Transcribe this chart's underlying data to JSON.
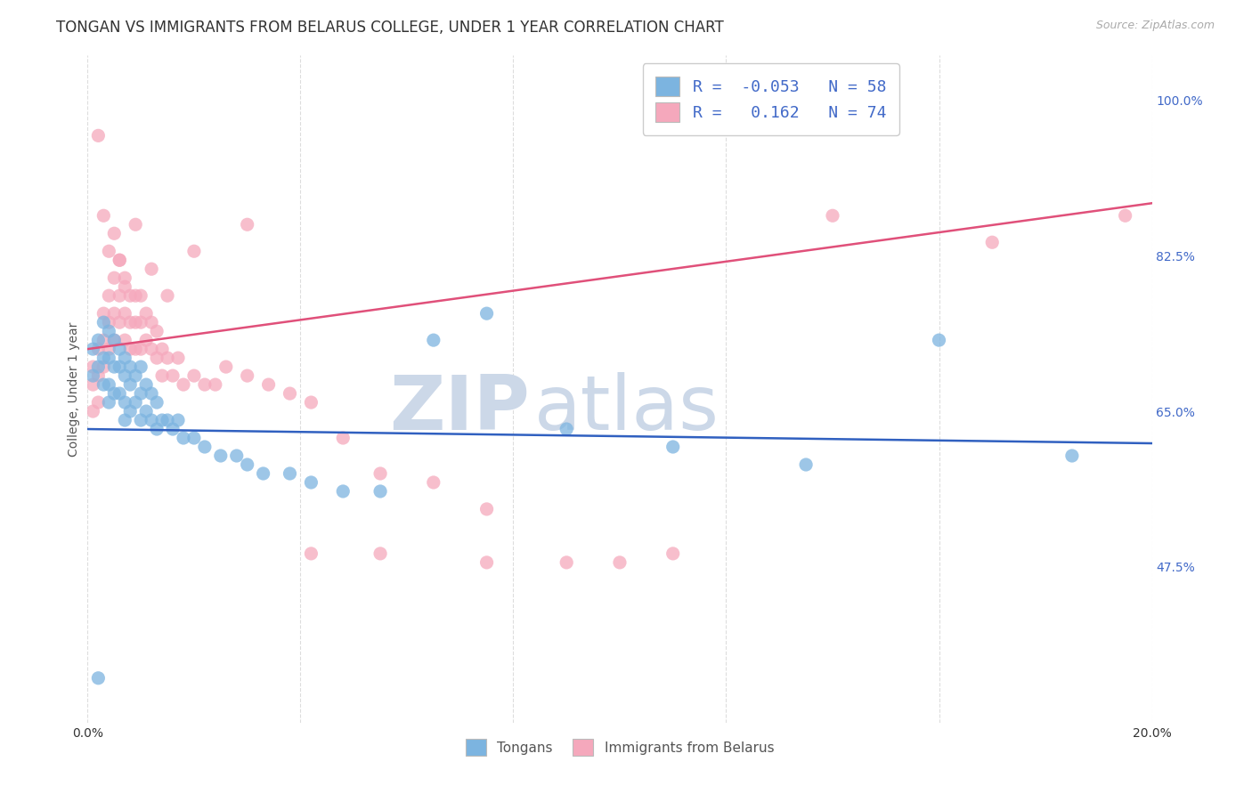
{
  "title": "TONGAN VS IMMIGRANTS FROM BELARUS COLLEGE, UNDER 1 YEAR CORRELATION CHART",
  "source": "Source: ZipAtlas.com",
  "ylabel_label": "College, Under 1 year",
  "xlim": [
    0.0,
    0.2
  ],
  "ylim": [
    0.3,
    1.05
  ],
  "xticks": [
    0.0,
    0.04,
    0.08,
    0.12,
    0.16,
    0.2
  ],
  "ytick_labels_right": [
    "100.0%",
    "82.5%",
    "65.0%",
    "47.5%"
  ],
  "ytick_values_right": [
    1.0,
    0.825,
    0.65,
    0.475
  ],
  "blue_R": -0.053,
  "blue_N": 58,
  "pink_R": 0.162,
  "pink_N": 74,
  "blue_color": "#7cb4e0",
  "pink_color": "#f5a8bc",
  "blue_line_color": "#3060c0",
  "pink_line_color": "#e0507a",
  "blue_scatter_x": [
    0.001,
    0.001,
    0.002,
    0.002,
    0.003,
    0.003,
    0.003,
    0.004,
    0.004,
    0.004,
    0.004,
    0.005,
    0.005,
    0.005,
    0.006,
    0.006,
    0.006,
    0.007,
    0.007,
    0.007,
    0.007,
    0.008,
    0.008,
    0.008,
    0.009,
    0.009,
    0.01,
    0.01,
    0.01,
    0.011,
    0.011,
    0.012,
    0.012,
    0.013,
    0.013,
    0.014,
    0.015,
    0.016,
    0.017,
    0.018,
    0.02,
    0.022,
    0.025,
    0.028,
    0.03,
    0.033,
    0.038,
    0.042,
    0.048,
    0.055,
    0.065,
    0.075,
    0.09,
    0.11,
    0.135,
    0.16,
    0.185,
    0.002
  ],
  "blue_scatter_y": [
    0.72,
    0.69,
    0.73,
    0.7,
    0.75,
    0.71,
    0.68,
    0.74,
    0.71,
    0.68,
    0.66,
    0.73,
    0.7,
    0.67,
    0.72,
    0.7,
    0.67,
    0.71,
    0.69,
    0.66,
    0.64,
    0.7,
    0.68,
    0.65,
    0.69,
    0.66,
    0.7,
    0.67,
    0.64,
    0.68,
    0.65,
    0.67,
    0.64,
    0.66,
    0.63,
    0.64,
    0.64,
    0.63,
    0.64,
    0.62,
    0.62,
    0.61,
    0.6,
    0.6,
    0.59,
    0.58,
    0.58,
    0.57,
    0.56,
    0.56,
    0.73,
    0.76,
    0.63,
    0.61,
    0.59,
    0.73,
    0.6,
    0.35
  ],
  "pink_scatter_x": [
    0.001,
    0.001,
    0.002,
    0.002,
    0.002,
    0.003,
    0.003,
    0.003,
    0.004,
    0.004,
    0.004,
    0.005,
    0.005,
    0.005,
    0.006,
    0.006,
    0.006,
    0.007,
    0.007,
    0.007,
    0.008,
    0.008,
    0.008,
    0.009,
    0.009,
    0.009,
    0.01,
    0.01,
    0.01,
    0.011,
    0.011,
    0.012,
    0.012,
    0.013,
    0.013,
    0.014,
    0.014,
    0.015,
    0.016,
    0.017,
    0.018,
    0.02,
    0.022,
    0.024,
    0.026,
    0.03,
    0.034,
    0.038,
    0.042,
    0.048,
    0.055,
    0.065,
    0.075,
    0.09,
    0.11,
    0.002,
    0.003,
    0.004,
    0.005,
    0.006,
    0.007,
    0.009,
    0.012,
    0.015,
    0.02,
    0.03,
    0.042,
    0.055,
    0.075,
    0.1,
    0.14,
    0.17,
    0.195,
    0.001
  ],
  "pink_scatter_y": [
    0.7,
    0.68,
    0.72,
    0.69,
    0.66,
    0.76,
    0.73,
    0.7,
    0.78,
    0.75,
    0.72,
    0.8,
    0.76,
    0.73,
    0.82,
    0.78,
    0.75,
    0.8,
    0.76,
    0.73,
    0.78,
    0.75,
    0.72,
    0.78,
    0.75,
    0.72,
    0.78,
    0.75,
    0.72,
    0.76,
    0.73,
    0.75,
    0.72,
    0.74,
    0.71,
    0.72,
    0.69,
    0.71,
    0.69,
    0.71,
    0.68,
    0.69,
    0.68,
    0.68,
    0.7,
    0.69,
    0.68,
    0.67,
    0.66,
    0.62,
    0.58,
    0.57,
    0.54,
    0.48,
    0.49,
    0.96,
    0.87,
    0.83,
    0.85,
    0.82,
    0.79,
    0.86,
    0.81,
    0.78,
    0.83,
    0.86,
    0.49,
    0.49,
    0.48,
    0.48,
    0.87,
    0.84,
    0.87,
    0.65
  ],
  "background_color": "#ffffff",
  "grid_color": "#dddddd",
  "watermark_zip": "ZIP",
  "watermark_atlas": "atlas",
  "watermark_color": "#ccd8e8",
  "title_fontsize": 12,
  "axis_label_fontsize": 10,
  "tick_fontsize": 10,
  "legend_fontsize": 13
}
